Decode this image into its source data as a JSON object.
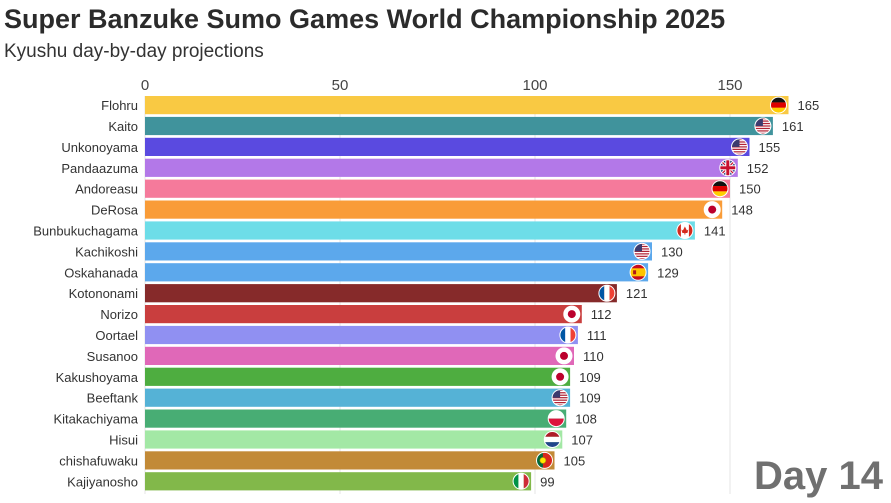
{
  "title": "Super Banzuke Sumo Games World Championship 2025",
  "subtitle": "Kyushu day-by-day projections",
  "day_label": "Day 14",
  "chart_data": {
    "type": "bar",
    "orientation": "horizontal",
    "xlim": [
      0,
      165
    ],
    "x_ticks": [
      0,
      50,
      100,
      150
    ],
    "grid": true,
    "bars": [
      {
        "name": "Flohru",
        "value": 165,
        "color": "#f9c943",
        "flag": "germany"
      },
      {
        "name": "Kaito",
        "value": 161,
        "color": "#40939c",
        "flag": "usa"
      },
      {
        "name": "Unkonoyama",
        "value": 155,
        "color": "#5a4ae0",
        "flag": "usa"
      },
      {
        "name": "Pandaazuma",
        "value": 152,
        "color": "#b378e8",
        "flag": "uk"
      },
      {
        "name": "Andoreasu",
        "value": 150,
        "color": "#f57a9b",
        "flag": "germany"
      },
      {
        "name": "DeRosa",
        "value": 148,
        "color": "#f99c38",
        "flag": "japan"
      },
      {
        "name": "Bunbukuchagama",
        "value": 141,
        "color": "#6ddde8",
        "flag": "canada"
      },
      {
        "name": "Kachikoshi",
        "value": 130,
        "color": "#5ca8ec",
        "flag": "usa"
      },
      {
        "name": "Oskahanada",
        "value": 129,
        "color": "#5ca8ec",
        "flag": "spain"
      },
      {
        "name": "Kotononami",
        "value": 121,
        "color": "#862a2a",
        "flag": "france"
      },
      {
        "name": "Norizo",
        "value": 112,
        "color": "#c93e3e",
        "flag": "japan"
      },
      {
        "name": "Oortael",
        "value": 111,
        "color": "#9090f2",
        "flag": "france"
      },
      {
        "name": "Susanoo",
        "value": 110,
        "color": "#e068b8",
        "flag": "japan"
      },
      {
        "name": "Kakushoyama",
        "value": 109,
        "color": "#4ead40",
        "flag": "japan"
      },
      {
        "name": "Beeftank",
        "value": 109,
        "color": "#55b2d6",
        "flag": "usa"
      },
      {
        "name": "Kitakachiyama",
        "value": 108,
        "color": "#48ad74",
        "flag": "poland"
      },
      {
        "name": "Hisui",
        "value": 107,
        "color": "#a3e8a5",
        "flag": "netherlands"
      },
      {
        "name": "chishafuwaku",
        "value": 105,
        "color": "#c28a37",
        "flag": "portugal"
      },
      {
        "name": "Kajiyanosho",
        "value": 99,
        "color": "#82b84a",
        "flag": "italy"
      }
    ]
  }
}
